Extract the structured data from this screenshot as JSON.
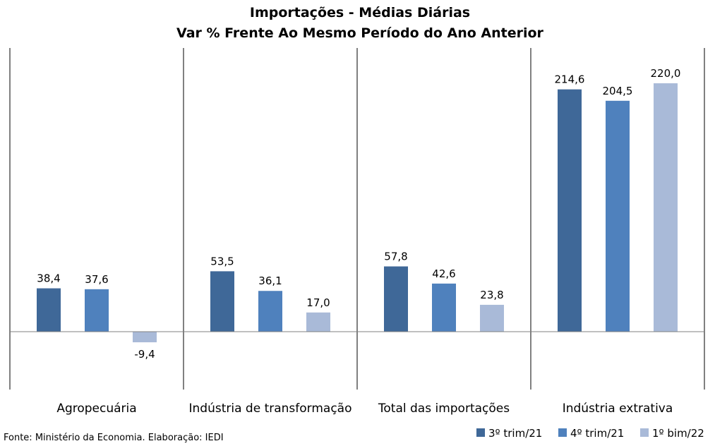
{
  "chart_data": {
    "type": "bar",
    "title": "Importações - Médias Diárias",
    "subtitle": "Var % Frente Ao Mesmo Período do Ano Anterior",
    "categories": [
      "Agropecuária",
      "Indústria de transformação",
      "Total das importações",
      "Indústria extrativa"
    ],
    "series": [
      {
        "name": "3º trim/21",
        "values": [
          38.4,
          53.5,
          57.8,
          214.6
        ],
        "labels": [
          "38,4",
          "53,5",
          "57,8",
          "214,6"
        ],
        "color": "#3F6898"
      },
      {
        "name": "4º trim/21",
        "values": [
          37.6,
          36.1,
          42.6,
          204.5
        ],
        "labels": [
          "37,6",
          "36,1",
          "42,6",
          "204,5"
        ],
        "color": "#4F81BD"
      },
      {
        "name": "1º bim/22",
        "values": [
          -9.4,
          17.0,
          23.8,
          220.0
        ],
        "labels": [
          "-9,4",
          "17,0",
          "23,8",
          "220,0"
        ],
        "color": "#A9BAD8"
      }
    ],
    "ylim": [
      -50,
      250
    ],
    "grid": false,
    "legend_position": "bottom-right",
    "xlabel": "",
    "ylabel": ""
  },
  "source": "Fonte: Ministério da Economia. Elaboração: IEDI",
  "colors": {
    "axis": "#808080",
    "separator": "#000000"
  }
}
